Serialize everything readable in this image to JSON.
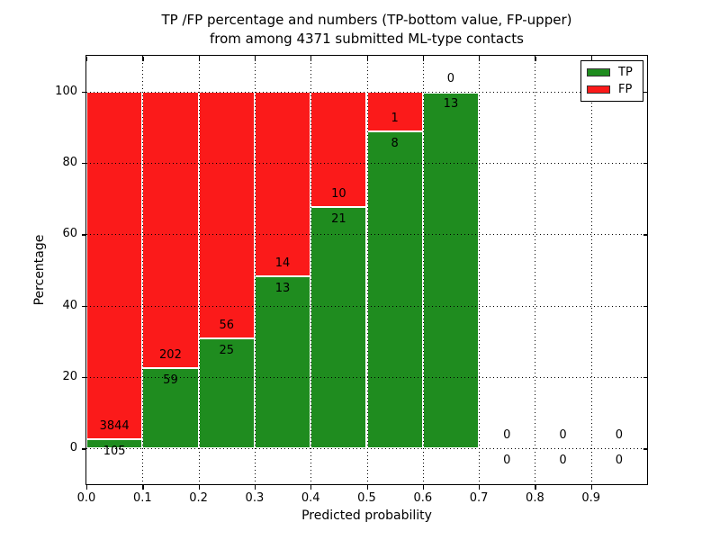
{
  "title": {
    "line1": "TP /FP percentage and numbers (TP-bottom value, FP-upper)",
    "line2": "from among 4371 submitted ML-type contacts"
  },
  "chart_data": {
    "type": "bar",
    "stacked": true,
    "title": "TP /FP percentage and numbers (TP-bottom value, FP-upper) from among 4371 submitted ML-type contacts",
    "xlabel": "Predicted probability",
    "ylabel": "Percentage",
    "xlim": [
      0.0,
      1.0
    ],
    "ylim": [
      -10,
      110
    ],
    "x_ticks": [
      "0.0",
      "0.1",
      "0.2",
      "0.3",
      "0.4",
      "0.5",
      "0.6",
      "0.7",
      "0.8",
      "0.9"
    ],
    "y_ticks": [
      0,
      20,
      40,
      60,
      80,
      100
    ],
    "grid": "dotted, drawn above bars",
    "legend_position": "upper right",
    "bin_width": 0.1,
    "total_contacts": 4371,
    "series": [
      {
        "name": "TP",
        "color": "#1f8c1f",
        "values": [
          105,
          59,
          25,
          13,
          21,
          8,
          13,
          0,
          0,
          0
        ]
      },
      {
        "name": "FP",
        "color": "#fb1a1a",
        "values": [
          3844,
          202,
          56,
          14,
          10,
          1,
          0,
          0,
          0,
          0
        ]
      }
    ],
    "bins": [
      {
        "range": "0.0-0.1",
        "tp": 105,
        "fp": 3844,
        "tp_pct": 2.66,
        "fp_pct": 97.34
      },
      {
        "range": "0.1-0.2",
        "tp": 59,
        "fp": 202,
        "tp_pct": 22.61,
        "fp_pct": 77.39
      },
      {
        "range": "0.2-0.3",
        "tp": 25,
        "fp": 56,
        "tp_pct": 30.86,
        "fp_pct": 69.14
      },
      {
        "range": "0.3-0.4",
        "tp": 13,
        "fp": 14,
        "tp_pct": 48.15,
        "fp_pct": 51.85
      },
      {
        "range": "0.4-0.5",
        "tp": 21,
        "fp": 10,
        "tp_pct": 67.74,
        "fp_pct": 32.26
      },
      {
        "range": "0.5-0.6",
        "tp": 8,
        "fp": 1,
        "tp_pct": 88.89,
        "fp_pct": 11.11
      },
      {
        "range": "0.6-0.7",
        "tp": 13,
        "fp": 0,
        "tp_pct": 100.0,
        "fp_pct": 0.0
      },
      {
        "range": "0.7-0.8",
        "tp": 0,
        "fp": 0,
        "tp_pct": 0.0,
        "fp_pct": 0.0
      },
      {
        "range": "0.8-0.9",
        "tp": 0,
        "fp": 0,
        "tp_pct": 0.0,
        "fp_pct": 0.0
      },
      {
        "range": "0.9-1.0",
        "tp": 0,
        "fp": 0,
        "tp_pct": 0.0,
        "fp_pct": 0.0
      }
    ]
  }
}
